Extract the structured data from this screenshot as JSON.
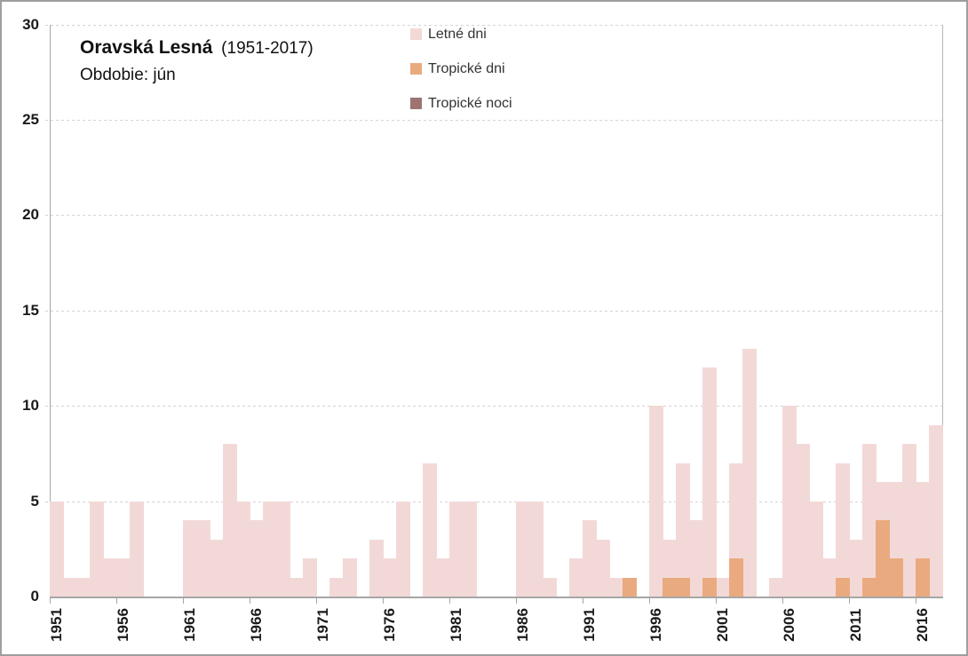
{
  "title": {
    "station": "Oravská Lesná",
    "range": "(1951-2017)",
    "period": "Obdobie: jún"
  },
  "legend": {
    "items": [
      {
        "label": "Letné dni",
        "color": "#f2d9d8"
      },
      {
        "label": "Tropické dni",
        "color": "#eaaa7f"
      },
      {
        "label": "Tropické noci",
        "color": "#9e7472"
      }
    ]
  },
  "chart_data": {
    "type": "bar",
    "title": "Oravská Lesná (1951-2017)",
    "subtitle": "Obdobie: jún",
    "bar_mode": "overlap",
    "grid": "horizontal-dashed",
    "legend_position": "top-center",
    "ylim": [
      0,
      30
    ],
    "yticks": [
      0,
      5,
      10,
      15,
      20,
      25,
      30
    ],
    "xtick_years": [
      1951,
      1956,
      1961,
      1966,
      1971,
      1976,
      1981,
      1986,
      1991,
      1996,
      2001,
      2006,
      2011,
      2016
    ],
    "x": [
      1951,
      1952,
      1953,
      1954,
      1955,
      1956,
      1957,
      1958,
      1959,
      1960,
      1961,
      1962,
      1963,
      1964,
      1965,
      1966,
      1967,
      1968,
      1969,
      1970,
      1971,
      1972,
      1973,
      1974,
      1975,
      1976,
      1977,
      1978,
      1979,
      1980,
      1981,
      1982,
      1983,
      1984,
      1985,
      1986,
      1987,
      1988,
      1989,
      1990,
      1991,
      1992,
      1993,
      1994,
      1995,
      1996,
      1997,
      1998,
      1999,
      2000,
      2001,
      2002,
      2003,
      2004,
      2005,
      2006,
      2007,
      2008,
      2009,
      2010,
      2011,
      2012,
      2013,
      2014,
      2015,
      2016,
      2017
    ],
    "series": [
      {
        "name": "Letné dni",
        "color": "#f2d9d8",
        "values": [
          5,
          1,
          1,
          5,
          2,
          2,
          5,
          0,
          0,
          0,
          4,
          4,
          3,
          8,
          5,
          4,
          5,
          5,
          1,
          2,
          0,
          1,
          2,
          0,
          3,
          2,
          5,
          0,
          7,
          2,
          5,
          5,
          0,
          0,
          0,
          5,
          5,
          1,
          0,
          2,
          4,
          3,
          1,
          1,
          0,
          10,
          3,
          7,
          4,
          12,
          1,
          7,
          13,
          0,
          1,
          10,
          8,
          5,
          2,
          7,
          3,
          8,
          6,
          6,
          8,
          6,
          9
        ]
      },
      {
        "name": "Tropické dni",
        "color": "#eaaa7f",
        "values": [
          0,
          0,
          0,
          0,
          0,
          0,
          0,
          0,
          0,
          0,
          0,
          0,
          0,
          0,
          0,
          0,
          0,
          0,
          0,
          0,
          0,
          0,
          0,
          0,
          0,
          0,
          0,
          0,
          0,
          0,
          0,
          0,
          0,
          0,
          0,
          0,
          0,
          0,
          0,
          0,
          0,
          0,
          0,
          1,
          0,
          0,
          1,
          1,
          0,
          1,
          0,
          2,
          0,
          0,
          0,
          0,
          0,
          0,
          0,
          1,
          0,
          1,
          4,
          2,
          0,
          2,
          0
        ]
      },
      {
        "name": "Tropické noci",
        "color": "#9e7472",
        "values": [
          0,
          0,
          0,
          0,
          0,
          0,
          0,
          0,
          0,
          0,
          0,
          0,
          0,
          0,
          0,
          0,
          0,
          0,
          0,
          0,
          0,
          0,
          0,
          0,
          0,
          0,
          0,
          0,
          0,
          0,
          0,
          0,
          0,
          0,
          0,
          0,
          0,
          0,
          0,
          0,
          0,
          0,
          0,
          0,
          0,
          0,
          0,
          0,
          0,
          0,
          0,
          0,
          0,
          0,
          0,
          0,
          0,
          0,
          0,
          0,
          0,
          0,
          0,
          0,
          0,
          0,
          0
        ]
      }
    ]
  }
}
